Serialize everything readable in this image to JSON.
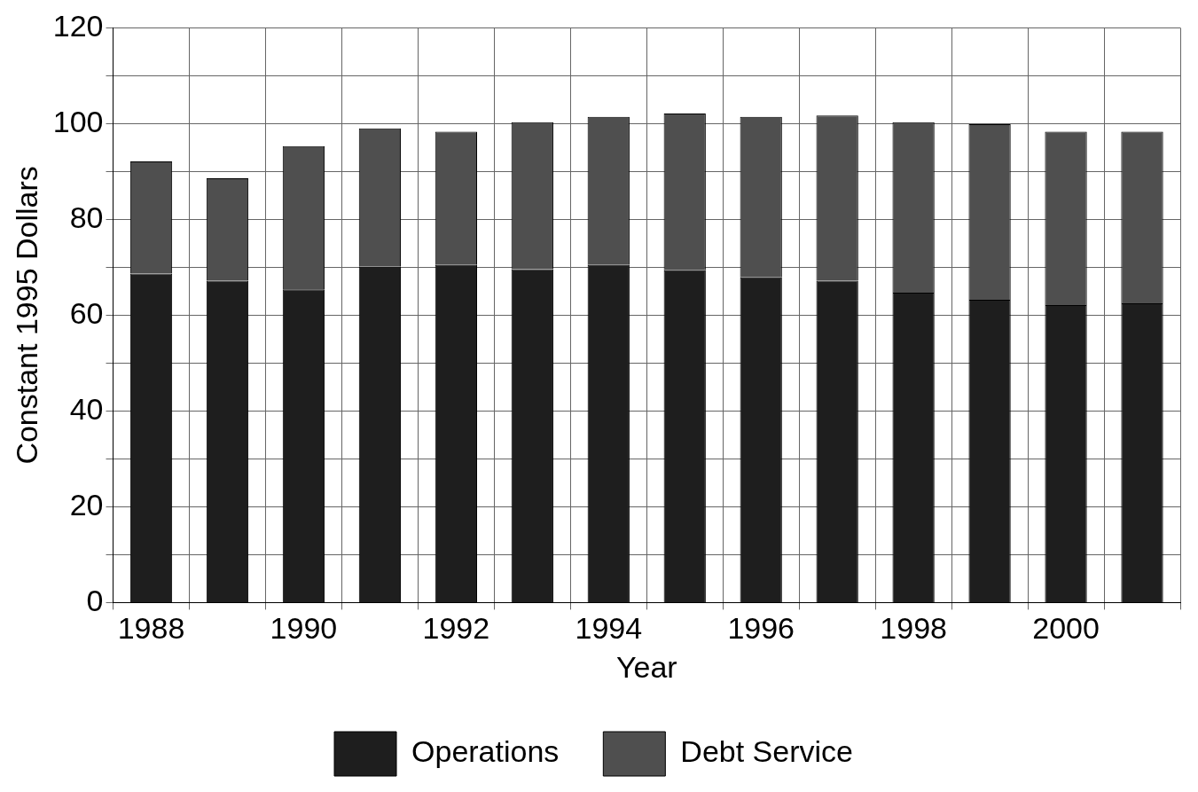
{
  "chart_data": {
    "type": "bar",
    "stacked": true,
    "xlabel": "Year",
    "ylabel": "Constant 1995 Dollars",
    "categories": [
      "1988",
      null,
      "1990",
      null,
      "1992",
      null,
      "1994",
      null,
      "1996",
      null,
      "1998",
      null,
      "2000",
      null
    ],
    "series": [
      {
        "name": "Operations",
        "color": "#1e1e1e",
        "values": [
          68.7,
          67.2,
          65.4,
          70.1,
          70.5,
          69.6,
          70.5,
          69.4,
          67.9,
          67.2,
          64.7,
          63.2,
          62.1,
          62.5
        ]
      },
      {
        "name": "Debt Service",
        "color": "#4f4f4f",
        "values": [
          23.4,
          21.4,
          29.9,
          28.9,
          27.8,
          30.7,
          30.9,
          32.7,
          33.5,
          34.5,
          35.6,
          36.7,
          36.2,
          35.8
        ]
      }
    ],
    "ylim": [
      0,
      120
    ],
    "yticks": [
      0,
      {
        "value": 10,
        "label": null
      },
      20,
      {
        "value": 30,
        "label": null
      },
      40,
      {
        "value": 50,
        "label": null
      },
      60,
      {
        "value": 70,
        "label": null
      },
      80,
      {
        "value": 90,
        "label": null
      },
      100,
      {
        "value": 110,
        "label": null
      },
      120
    ],
    "grid": true,
    "legend": "bottom"
  }
}
